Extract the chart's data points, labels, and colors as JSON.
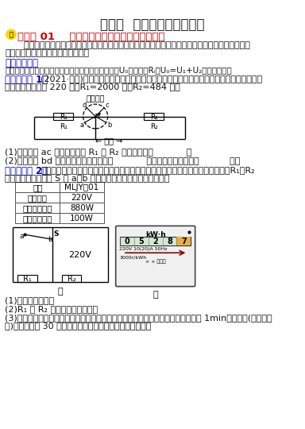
{
  "title": "专题一  多档位电热器的计算",
  "sec1_title": "知识点 01    串联电路中的高温挡和低温挡分析",
  "sec1_body1": "    判断电热器高温挡和低温挡的依据是电热器的功率，当电源电压一定时，串联的电阻越多，总电阻",
  "sec1_body2": "越大，总功率越小，温度挡位越小。",
  "ability_title": "【能力拓展】",
  "ability_body": "当题中没有电源电压与所求电阻时，可设电源电压为U₀，电阻为Rᵢ，U₀=U₁+U₂列方程可得。",
  "ex1_tag": "【跟学即练 1】",
  "ex1_text1": "(2021·台州)某电热器的简化电路如图所示，可通过转动旋钮开关实现加热和保温功能。该",
  "ex1_text2": "电热器额定电压为 220 伏，R₁=2000 欧，R₂=484 欧。",
  "switch_label": "旋钮开关",
  "r1_label": "R₁",
  "r2_label": "R₂",
  "source_label": "电源",
  "q1": "(1)开关转至 ac 位置时，电阻 R₁ 和 R₂ 的连接方式是            。",
  "q2": "(2)开关转至 bd 位置时，该电热器可实现            功能、它的额定功率是           瓦。",
  "ex2_tag": "【跟学即练 2】",
  "ex2_text1": "小敏家中有一个足浴盆，其部分铭牌信息如表格所示，图甲为足浴盆的工作电路，R₁、R₂",
  "ex2_text2": "均为电热丝，当开关 S 接 a、b 触点时，足浴盆的挡位不同，求：",
  "tbl_r0": [
    "型号",
    "MLJY－01"
  ],
  "tbl_r1": [
    "额定电压",
    "220V"
  ],
  "tbl_r2": [
    "额定加热功率",
    "880W"
  ],
  "tbl_r3": [
    "额定保温功率",
    "100W"
  ],
  "circ2_220": "220V",
  "circ2_S": "S",
  "circ2_a": "a",
  "circ2_b": "b",
  "circ2_R1": "R₁",
  "circ2_R2": "R₂",
  "label_jia": "甲",
  "label_yi": "乙",
  "meter_kwh": "kW·h",
  "meter_nums": "0 5 2 8 7",
  "meter_spec1": "220V 10(20)A 50Hz",
  "meter_spec2": "3000r/kWh",
  "meter_mfg": "× × 电表厂",
  "q3": "(1)额定加热电流。",
  "q4": "(2)R₁ 和 R₂ 的阻值各为多少欧？",
  "q5a": "(3)在用电高峰期，小敏关闭家中其他用电器，只让足浴盆通电，使其处于加热状态 1min，电能表(如图乙所",
  "q5b": "示)的圆盘转了 30 转，则浴足盆加热的实际功率为多少瓦？",
  "bg": "#ffffff",
  "title_color": "#1a1a1a",
  "red_color": "#cc0000",
  "blue_color": "#0000cc",
  "text_color": "#111111",
  "gray_color": "#555555"
}
